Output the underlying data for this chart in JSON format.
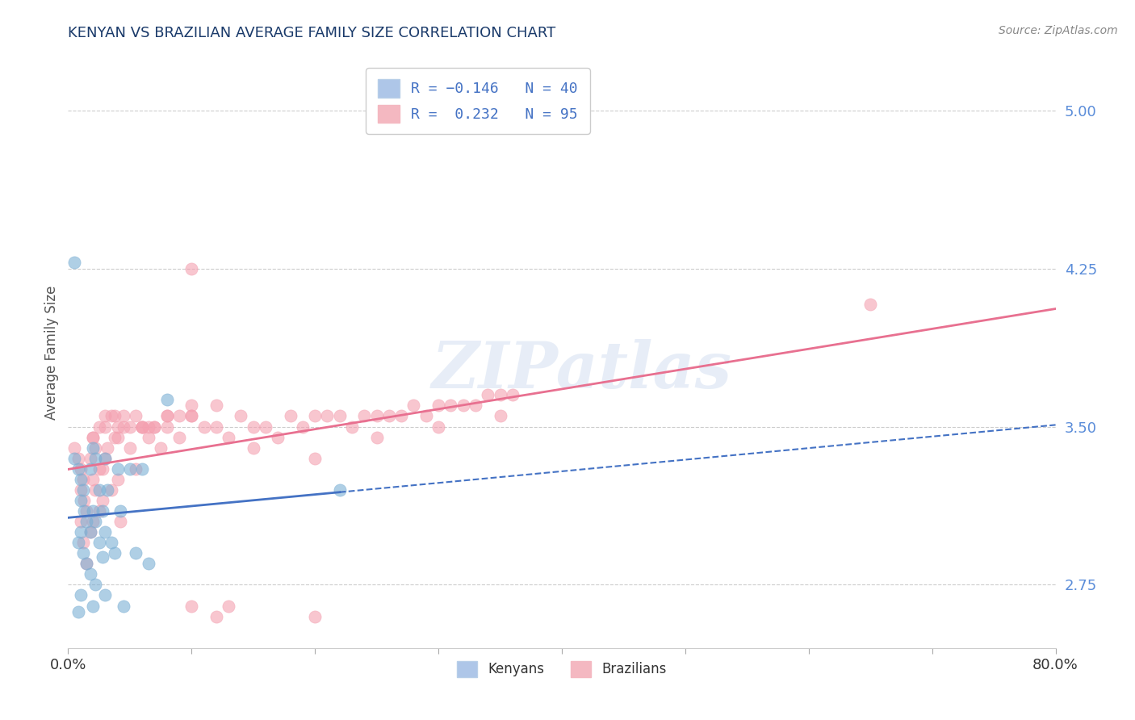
{
  "title": "KENYAN VS BRAZILIAN AVERAGE FAMILY SIZE CORRELATION CHART",
  "source": "Source: ZipAtlas.com",
  "ylabel": "Average Family Size",
  "right_yticks": [
    2.75,
    3.5,
    4.25,
    5.0
  ],
  "xlim": [
    0.0,
    0.8
  ],
  "ylim": [
    2.45,
    5.25
  ],
  "kenyan_color": "#7bafd4",
  "brazilian_color": "#f4a0b0",
  "kenyan_line_color": "#4472c4",
  "brazilian_line_color": "#e87090",
  "watermark": "ZIPatlas",
  "kenyan_x": [
    0.005,
    0.008,
    0.01,
    0.012,
    0.01,
    0.013,
    0.015,
    0.01,
    0.008,
    0.012,
    0.015,
    0.018,
    0.01,
    0.02,
    0.022,
    0.018,
    0.025,
    0.02,
    0.022,
    0.018,
    0.025,
    0.028,
    0.022,
    0.02,
    0.03,
    0.032,
    0.028,
    0.03,
    0.035,
    0.03,
    0.04,
    0.042,
    0.038,
    0.045,
    0.05,
    0.055,
    0.06,
    0.065,
    0.08,
    0.22,
    0.005,
    0.008
  ],
  "kenyan_y": [
    3.35,
    3.3,
    3.25,
    3.2,
    3.15,
    3.1,
    3.05,
    3.0,
    2.95,
    2.9,
    2.85,
    2.8,
    2.7,
    3.4,
    3.35,
    3.3,
    3.2,
    3.1,
    3.05,
    3.0,
    2.95,
    2.88,
    2.75,
    2.65,
    3.35,
    3.2,
    3.1,
    3.0,
    2.95,
    2.7,
    3.3,
    3.1,
    2.9,
    2.65,
    3.3,
    2.9,
    3.3,
    2.85,
    3.63,
    3.2,
    4.28,
    2.62
  ],
  "brazilian_x": [
    0.005,
    0.008,
    0.01,
    0.012,
    0.01,
    0.013,
    0.015,
    0.01,
    0.018,
    0.012,
    0.015,
    0.02,
    0.022,
    0.018,
    0.025,
    0.02,
    0.022,
    0.028,
    0.025,
    0.02,
    0.03,
    0.032,
    0.028,
    0.035,
    0.038,
    0.03,
    0.04,
    0.042,
    0.038,
    0.045,
    0.05,
    0.055,
    0.06,
    0.065,
    0.07,
    0.075,
    0.08,
    0.09,
    0.1,
    0.11,
    0.12,
    0.13,
    0.14,
    0.15,
    0.16,
    0.17,
    0.18,
    0.19,
    0.2,
    0.21,
    0.22,
    0.23,
    0.24,
    0.25,
    0.26,
    0.27,
    0.28,
    0.29,
    0.3,
    0.31,
    0.32,
    0.33,
    0.34,
    0.35,
    0.36,
    0.04,
    0.06,
    0.08,
    0.1,
    0.12,
    0.02,
    0.025,
    0.03,
    0.035,
    0.04,
    0.045,
    0.05,
    0.055,
    0.06,
    0.065,
    0.07,
    0.08,
    0.09,
    0.1,
    0.65,
    0.15,
    0.2,
    0.25,
    0.3,
    0.35,
    0.1,
    0.12,
    0.13,
    0.1,
    0.2
  ],
  "brazilian_y": [
    3.4,
    3.35,
    3.3,
    3.25,
    3.2,
    3.15,
    3.1,
    3.05,
    3.0,
    2.95,
    2.85,
    3.45,
    3.4,
    3.35,
    3.3,
    3.25,
    3.2,
    3.15,
    3.1,
    3.05,
    3.5,
    3.4,
    3.3,
    3.2,
    3.45,
    3.35,
    3.25,
    3.05,
    3.55,
    3.5,
    3.4,
    3.3,
    3.5,
    3.45,
    3.5,
    3.4,
    3.55,
    3.45,
    3.55,
    3.5,
    3.5,
    3.45,
    3.55,
    3.5,
    3.5,
    3.45,
    3.55,
    3.5,
    3.55,
    3.55,
    3.55,
    3.5,
    3.55,
    3.55,
    3.55,
    3.55,
    3.6,
    3.55,
    3.6,
    3.6,
    3.6,
    3.6,
    3.65,
    3.65,
    3.65,
    3.45,
    3.5,
    3.5,
    3.55,
    3.6,
    3.45,
    3.5,
    3.55,
    3.55,
    3.5,
    3.55,
    3.5,
    3.55,
    3.5,
    3.5,
    3.5,
    3.55,
    3.55,
    3.6,
    4.08,
    3.4,
    3.35,
    3.45,
    3.5,
    3.55,
    2.65,
    2.6,
    2.65,
    4.25,
    2.6
  ]
}
